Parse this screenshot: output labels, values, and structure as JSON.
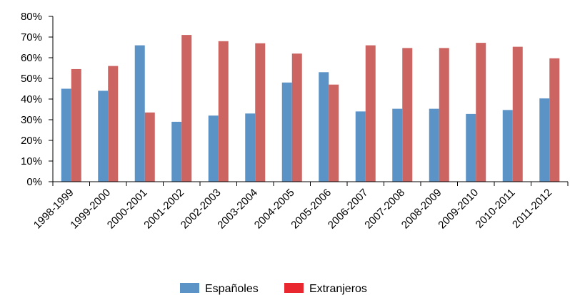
{
  "chart_data": {
    "type": "bar",
    "categories": [
      "1998-1999",
      "1999-2000",
      "2000-2001",
      "2001-2002",
      "2002-2003",
      "2003-2004",
      "2004-2005",
      "2005-2006",
      "2006-2007",
      "2007-2008",
      "2008-2009",
      "2009-2010",
      "2010-2011",
      "2011-2012"
    ],
    "series": [
      {
        "name": "Españoles",
        "color": "#5b93c7",
        "legend_color": "#5b93c7",
        "values": [
          45,
          44,
          66,
          29,
          32,
          33,
          48,
          53,
          34,
          35.3,
          35.3,
          32.8,
          34.7,
          40.3
        ]
      },
      {
        "name": "Extranjeros",
        "color": "#cc6462",
        "legend_color": "#e8282e",
        "values": [
          54.5,
          56,
          33.5,
          71,
          68,
          67,
          62,
          47,
          66,
          64.7,
          64.7,
          67.2,
          65.3,
          59.7
        ]
      }
    ],
    "ylim": [
      0,
      80
    ],
    "yticks": [
      "0%",
      "10%",
      "20%",
      "30%",
      "40%",
      "50%",
      "60%",
      "70%",
      "80%"
    ],
    "title": "",
    "xlabel": "",
    "ylabel": "",
    "grid": false,
    "legend_position": "bottom"
  }
}
